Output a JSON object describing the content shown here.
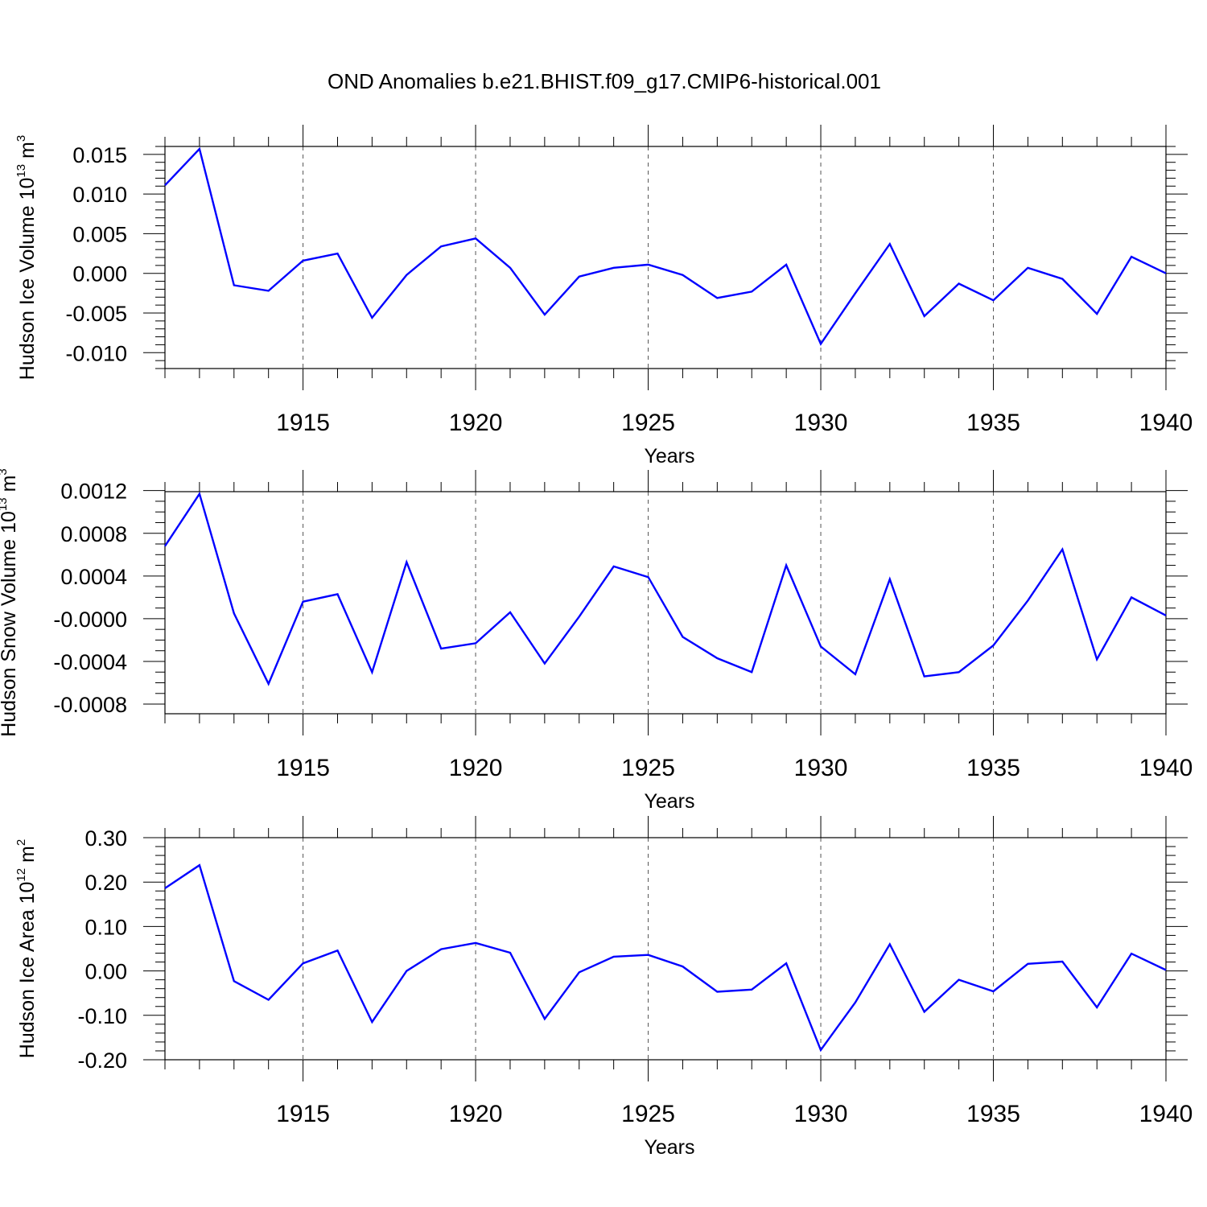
{
  "title": "OND Anomalies b.e21.BHIST.f09_g17.CMIP6-historical.001",
  "chart_data": [
    {
      "type": "line",
      "name": "ice-volume",
      "ylabel_main": "Hudson Ice Volume 10",
      "ylabel_exp": "13",
      "ylabel_unit": " m",
      "ylabel_unit_exp": "3",
      "xlabel": "Years",
      "xlim": [
        1911,
        1940
      ],
      "ylim": [
        -0.012,
        0.016
      ],
      "yticks": [
        0.015,
        0.01,
        0.005,
        0.0,
        -0.005,
        -0.01
      ],
      "ytick_labels": [
        "0.015",
        "0.010",
        "0.005",
        "0.000",
        "-0.005",
        "-0.010"
      ],
      "yminor_step": 0.001,
      "xticks": [
        1915,
        1920,
        1925,
        1930,
        1935,
        1940
      ],
      "xtick_labels": [
        "1915",
        "1920",
        "1925",
        "1930",
        "1935",
        "1940"
      ],
      "color": "#0000ff",
      "series": [
        {
          "name": "Hudson Ice Volume",
          "x": [
            1911,
            1912,
            1913,
            1914,
            1915,
            1916,
            1917,
            1918,
            1919,
            1920,
            1921,
            1922,
            1923,
            1924,
            1925,
            1926,
            1927,
            1928,
            1929,
            1930,
            1931,
            1932,
            1933,
            1934,
            1935,
            1936,
            1937,
            1938,
            1939,
            1940
          ],
          "values": [
            0.0111,
            0.0157,
            -0.0015,
            -0.0022,
            0.0016,
            0.0025,
            -0.0056,
            -0.0002,
            0.0034,
            0.0044,
            0.0007,
            -0.0052,
            -0.0004,
            0.0007,
            0.0011,
            -0.0002,
            -0.0031,
            -0.0023,
            0.0011,
            -0.0089,
            -0.0025,
            0.0037,
            -0.0054,
            -0.0013,
            -0.0034,
            0.0007,
            -0.0007,
            -0.0051,
            0.0021,
            0.0
          ]
        }
      ]
    },
    {
      "type": "line",
      "name": "snow-volume",
      "ylabel_main": "Hudson Snow Volume 10",
      "ylabel_exp": "13",
      "ylabel_unit": " m",
      "ylabel_unit_exp": "3",
      "xlabel": "Years",
      "xlim": [
        1911,
        1940
      ],
      "ylim": [
        -0.00089,
        0.00119
      ],
      "yticks": [
        0.0012,
        0.0008,
        0.0004,
        0.0,
        -0.0004,
        -0.0008
      ],
      "ytick_labels": [
        "0.0012",
        "0.0008",
        "0.0004",
        "-0.0000",
        "-0.0004",
        "-0.0008"
      ],
      "yminor_step": 0.0001,
      "xticks": [
        1915,
        1920,
        1925,
        1930,
        1935,
        1940
      ],
      "xtick_labels": [
        "1915",
        "1920",
        "1925",
        "1930",
        "1935",
        "1940"
      ],
      "color": "#0000ff",
      "series": [
        {
          "name": "Hudson Snow Volume",
          "x": [
            1911,
            1912,
            1913,
            1914,
            1915,
            1916,
            1917,
            1918,
            1919,
            1920,
            1921,
            1922,
            1923,
            1924,
            1925,
            1926,
            1927,
            1928,
            1929,
            1930,
            1931,
            1932,
            1933,
            1934,
            1935,
            1936,
            1937,
            1938,
            1939,
            1940
          ],
          "values": [
            0.00068,
            0.00117,
            5e-05,
            -0.00061,
            0.00016,
            0.00023,
            -0.0005,
            0.00053,
            -0.00028,
            -0.00023,
            6e-05,
            -0.00042,
            2e-05,
            0.00049,
            0.00039,
            -0.00017,
            -0.00037,
            -0.0005,
            0.0005,
            -0.00026,
            -0.00052,
            0.00037,
            -0.00054,
            -0.0005,
            -0.00025,
            0.00017,
            0.00065,
            -0.00038,
            0.0002,
            3e-05
          ]
        }
      ]
    },
    {
      "type": "line",
      "name": "ice-area",
      "ylabel_main": "Hudson Ice Area 10",
      "ylabel_exp": "12",
      "ylabel_unit": " m",
      "ylabel_unit_exp": "2",
      "xlabel": "Years",
      "xlim": [
        1911,
        1940
      ],
      "ylim": [
        -0.2,
        0.3
      ],
      "yticks": [
        0.3,
        0.2,
        0.1,
        0.0,
        -0.1,
        -0.2
      ],
      "ytick_labels": [
        "0.30",
        "0.20",
        "0.10",
        "0.00",
        "-0.10",
        "-0.20"
      ],
      "yminor_step": 0.02,
      "xticks": [
        1915,
        1920,
        1925,
        1930,
        1935,
        1940
      ],
      "xtick_labels": [
        "1915",
        "1920",
        "1925",
        "1930",
        "1935",
        "1940"
      ],
      "color": "#0000ff",
      "series": [
        {
          "name": "Hudson Ice Area",
          "x": [
            1911,
            1912,
            1913,
            1914,
            1915,
            1916,
            1917,
            1918,
            1919,
            1920,
            1921,
            1922,
            1923,
            1924,
            1925,
            1926,
            1927,
            1928,
            1929,
            1930,
            1931,
            1932,
            1933,
            1934,
            1935,
            1936,
            1937,
            1938,
            1939,
            1940
          ],
          "values": [
            0.186,
            0.238,
            -0.023,
            -0.065,
            0.017,
            0.046,
            -0.115,
            0.0,
            0.049,
            0.063,
            0.041,
            -0.108,
            -0.003,
            0.032,
            0.036,
            0.01,
            -0.047,
            -0.042,
            0.017,
            -0.178,
            -0.071,
            0.06,
            -0.092,
            -0.02,
            -0.046,
            0.016,
            0.021,
            -0.082,
            0.039,
            0.002
          ]
        }
      ]
    }
  ]
}
